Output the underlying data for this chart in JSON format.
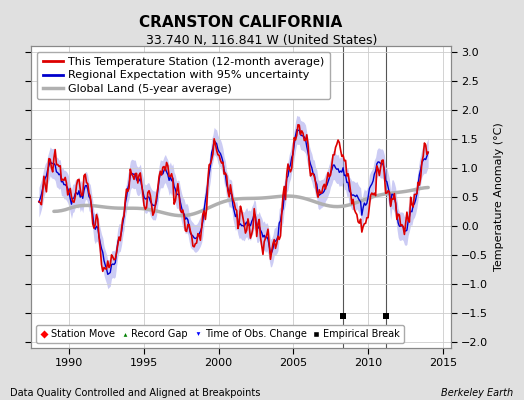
{
  "title": "CRANSTON CALIFORNIA",
  "subtitle": "33.740 N, 116.841 W (United States)",
  "ylabel": "Temperature Anomaly (°C)",
  "xlabel_left": "Data Quality Controlled and Aligned at Breakpoints",
  "xlabel_right": "Berkeley Earth",
  "ylim": [
    -2.1,
    3.1
  ],
  "xlim": [
    1987.5,
    2015.5
  ],
  "yticks": [
    -2,
    -1.5,
    -1,
    -0.5,
    0,
    0.5,
    1,
    1.5,
    2,
    2.5,
    3
  ],
  "xticks": [
    1990,
    1995,
    2000,
    2005,
    2010,
    2015
  ],
  "empirical_breaks": [
    2008.3,
    2011.2
  ],
  "background_color": "#e0e0e0",
  "plot_bg_color": "#ffffff",
  "grid_color": "#cccccc",
  "station_color": "#dd0000",
  "regional_color": "#0000cc",
  "regional_fill_color": "#aaaaee",
  "global_color": "#b0b0b0",
  "legend_fs": 8,
  "title_fs": 11,
  "subtitle_fs": 9
}
